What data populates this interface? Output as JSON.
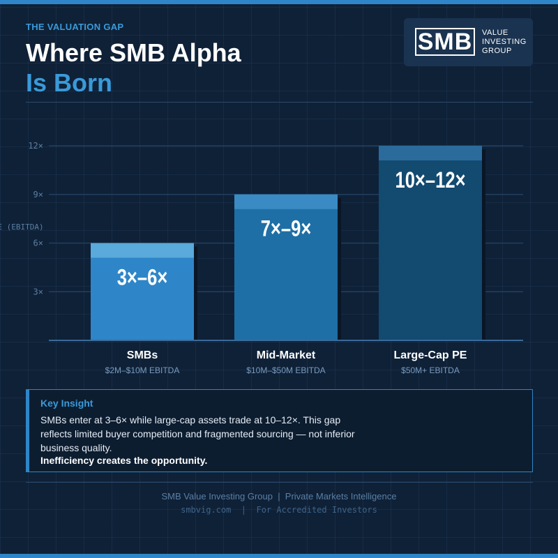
{
  "header": {
    "eyebrow": "THE VALUATION GAP",
    "title_line1": "Where SMB Alpha",
    "title_line2": "Is Born"
  },
  "logo": {
    "mark": "SMB",
    "text_line1": "VALUE",
    "text_line2": "INVESTING",
    "text_line3": "GROUP"
  },
  "chart_data": {
    "type": "bar",
    "ylabel": "MULTIPLE (EBITDA)",
    "ylim": [
      0,
      12
    ],
    "yticks": [
      3,
      6,
      9,
      12
    ],
    "ytick_labels": [
      "3×",
      "6×",
      "9×",
      "12×"
    ],
    "grid": true,
    "categories": [
      "SMBs",
      "Mid-Market",
      "Large-Cap PE"
    ],
    "subtitles": [
      "$2M–$10M EBITDA",
      "$10M–$50M EBITDA",
      "$50M+ EBITDA"
    ],
    "low": [
      3,
      7,
      10
    ],
    "high": [
      6,
      9,
      12
    ],
    "data_labels": [
      "3×–6×",
      "7×–9×",
      "10×–12×"
    ],
    "colors": [
      "#2e86c8",
      "#1e6fa5",
      "#134a70"
    ],
    "top_colors": [
      "#5aaadb",
      "#3a8bc4",
      "#2a6b9c"
    ]
  },
  "insight": {
    "title": "Key Insight",
    "body": "SMBs enter at 3–6× while large-cap assets trade at 10–12×. This gap reflects limited buyer competition and fragmented sourcing — not inferior business quality.",
    "emphasis": "Inefficiency creates the opportunity."
  },
  "footer": {
    "line1": "SMB Value Investing Group  |  Private Markets Intelligence",
    "line2": "smbvig.com  |  For Accredited Investors"
  }
}
